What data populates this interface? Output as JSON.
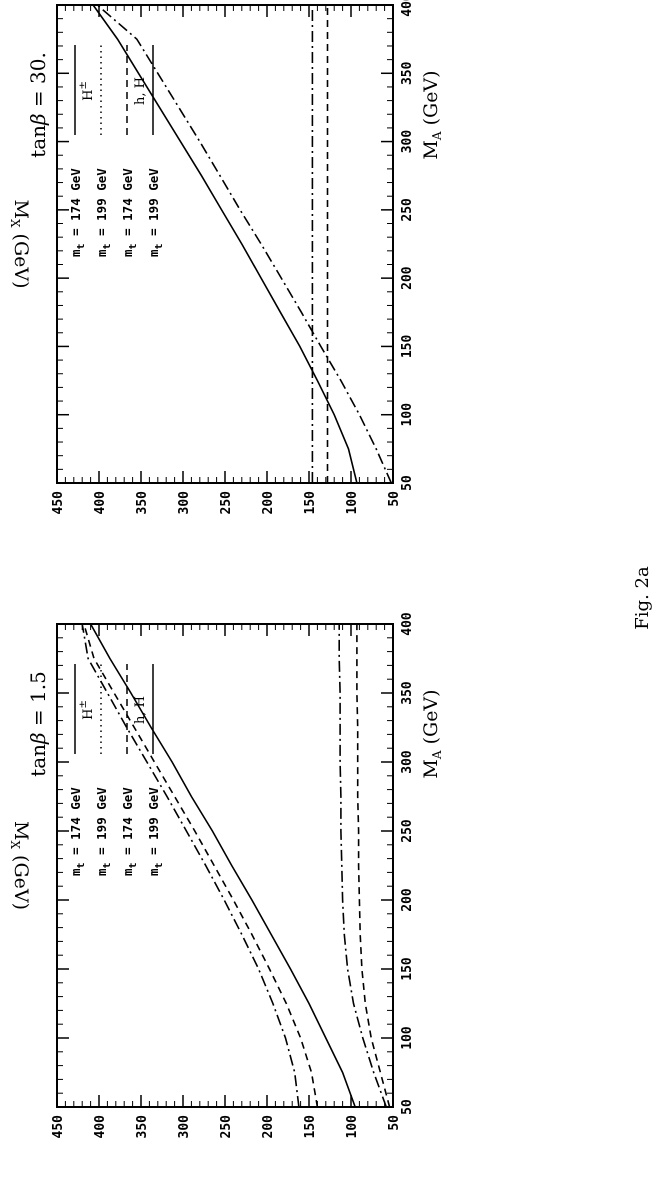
{
  "figure_caption": "Fig. 2a",
  "legend_groups": [
    {
      "tag": "H",
      "tag_sup": "±"
    },
    {
      "tag": "h, H",
      "tag_sup": ""
    }
  ],
  "chart_data": [
    {
      "type": "line",
      "title_prefix": "tan",
      "title_symbol": "β",
      "title_suffix": " = 1.5",
      "xlabel": "M",
      "xlabel_sub": "A",
      "xlabel_unit": "(GeV)",
      "ylabel": "M",
      "ylabel_sub": "X",
      "ylabel_unit": "(GeV)",
      "xlim": [
        50,
        400
      ],
      "ylim": [
        50,
        450
      ],
      "xticks": [
        50,
        100,
        150,
        200,
        250,
        300,
        350,
        400
      ],
      "yticks": [
        50,
        100,
        150,
        200,
        250,
        300,
        350,
        400,
        450
      ],
      "legend_placement": "top-left",
      "legend": [
        {
          "text": "m",
          "sub": "t",
          "rest": " = 174 GeV",
          "style": "solid",
          "group": 0
        },
        {
          "text": "m",
          "sub": "t",
          "rest": " = 199 GeV",
          "style": "dotted",
          "group": 0
        },
        {
          "text": "m",
          "sub": "t",
          "rest": " = 174 GeV",
          "style": "dashed",
          "group": 1
        },
        {
          "text": "m",
          "sub": "t",
          "rest": " = 199 GeV",
          "style": "solid",
          "group": 1
        }
      ],
      "series": [
        {
          "style": "solid",
          "x": [
            50,
            75,
            100,
            125,
            150,
            175,
            200,
            225,
            250,
            275,
            300,
            325,
            350,
            375,
            400
          ],
          "y": [
            95,
            110,
            130,
            150,
            172,
            195,
            218,
            242,
            265,
            290,
            313,
            338,
            362,
            387,
            410
          ]
        },
        {
          "style": "dashed",
          "x": [
            50,
            75,
            100,
            125,
            150,
            175,
            200,
            225,
            250,
            275,
            300,
            325,
            350,
            375,
            400
          ],
          "y": [
            140,
            147,
            160,
            177,
            197,
            218,
            240,
            263,
            286,
            310,
            334,
            358,
            382,
            406,
            418
          ]
        },
        {
          "style": "dashdot",
          "x": [
            50,
            75,
            100,
            125,
            150,
            175,
            200,
            225,
            250,
            275,
            300,
            325,
            350,
            375,
            400
          ],
          "y": [
            162,
            167,
            178,
            193,
            210,
            230,
            251,
            273,
            296,
            319,
            343,
            367,
            390,
            413,
            420
          ]
        },
        {
          "style": "dashdot",
          "x": [
            50,
            75,
            100,
            125,
            150,
            175,
            200,
            225,
            250,
            275,
            300,
            325,
            350,
            375,
            400
          ],
          "y": [
            58,
            73,
            86,
            97,
            104,
            108,
            110,
            111,
            112,
            112,
            113,
            113,
            113,
            114,
            114
          ]
        },
        {
          "style": "dashed",
          "x": [
            50,
            75,
            100,
            125,
            150,
            175,
            200,
            225,
            250,
            275,
            300,
            325,
            350,
            375,
            400
          ],
          "y": [
            54,
            65,
            76,
            83,
            87,
            89,
            90,
            91,
            91,
            92,
            92,
            92,
            93,
            93,
            93
          ]
        }
      ]
    },
    {
      "type": "line",
      "title_prefix": "tan",
      "title_symbol": "β",
      "title_suffix": " = 30.",
      "xlabel": "M",
      "xlabel_sub": "A",
      "xlabel_unit": "(GeV)",
      "ylabel": "M",
      "ylabel_sub": "X",
      "ylabel_unit": "(GeV)",
      "xlim": [
        50,
        400
      ],
      "ylim": [
        50,
        450
      ],
      "xticks": [
        50,
        100,
        150,
        200,
        250,
        300,
        350,
        400
      ],
      "yticks": [
        50,
        100,
        150,
        200,
        250,
        300,
        350,
        400,
        450
      ],
      "legend_placement": "top-left",
      "legend": [
        {
          "text": "m",
          "sub": "t",
          "rest": " = 174 GeV",
          "style": "solid",
          "group": 0
        },
        {
          "text": "m",
          "sub": "t",
          "rest": " = 199 GeV",
          "style": "dotted",
          "group": 0
        },
        {
          "text": "m",
          "sub": "t",
          "rest": " = 174 GeV",
          "style": "dashed",
          "group": 1
        },
        {
          "text": "m",
          "sub": "t",
          "rest": " = 199 GeV",
          "style": "solid",
          "group": 1
        }
      ],
      "series": [
        {
          "style": "solid",
          "x": [
            50,
            75,
            100,
            125,
            150,
            175,
            200,
            225,
            250,
            275,
            300,
            325,
            350,
            375,
            400
          ],
          "y": [
            93,
            103,
            120,
            140,
            161,
            184,
            207,
            230,
            254,
            278,
            303,
            328,
            353,
            378,
            407
          ]
        },
        {
          "style": "dashdot",
          "x": [
            50,
            75,
            100,
            125,
            150,
            175,
            200,
            225,
            250,
            275,
            300,
            325,
            350,
            375,
            400
          ],
          "y": [
            52,
            70,
            90,
            112,
            136,
            159,
            183,
            207,
            232,
            256,
            280,
            305,
            330,
            355,
            402
          ]
        },
        {
          "style": "dashdot",
          "x": [
            50,
            400
          ],
          "y": [
            146,
            146
          ]
        },
        {
          "style": "dashed",
          "x": [
            50,
            400
          ],
          "y": [
            128,
            128
          ]
        }
      ]
    }
  ]
}
